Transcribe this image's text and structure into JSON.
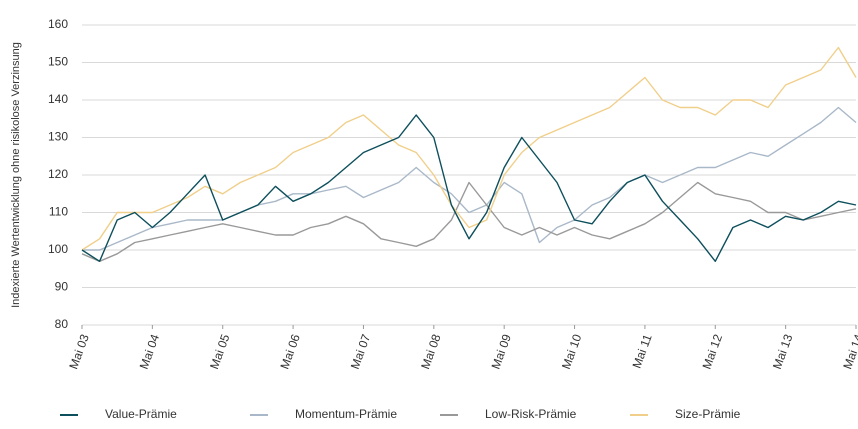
{
  "chart_data": {
    "type": "line",
    "y_label": "Indexierte Wertentwicklung ohne risikolose Verzinsung",
    "x": [
      "2003-05",
      "2003-08",
      "2003-11",
      "2004-02",
      "2004-05",
      "2004-08",
      "2004-11",
      "2005-02",
      "2005-05",
      "2005-08",
      "2005-11",
      "2006-02",
      "2006-05",
      "2006-08",
      "2006-11",
      "2007-02",
      "2007-05",
      "2007-08",
      "2007-11",
      "2008-02",
      "2008-05",
      "2008-08",
      "2008-11",
      "2009-02",
      "2009-05",
      "2009-08",
      "2009-11",
      "2010-02",
      "2010-05",
      "2010-08",
      "2010-11",
      "2011-02",
      "2011-05",
      "2011-08",
      "2011-11",
      "2012-02",
      "2012-05",
      "2012-08",
      "2012-11",
      "2013-02",
      "2013-05",
      "2013-08",
      "2013-11",
      "2014-02",
      "2014-05"
    ],
    "series": [
      {
        "name": "Value-Prämie",
        "color": "#0d4f5c",
        "values": [
          100,
          97,
          108,
          110,
          106,
          110,
          115,
          120,
          108,
          110,
          112,
          117,
          113,
          115,
          118,
          122,
          126,
          128,
          130,
          136,
          130,
          112,
          103,
          110,
          122,
          130,
          124,
          118,
          108,
          107,
          113,
          118,
          120,
          113,
          108,
          103,
          97,
          106,
          108,
          106,
          109,
          108,
          110,
          113,
          112
        ]
      },
      {
        "name": "Momentum-Prämie",
        "color": "#a9b8c8",
        "values": [
          100,
          100,
          102,
          104,
          106,
          107,
          108,
          108,
          108,
          110,
          112,
          113,
          115,
          115,
          116,
          117,
          114,
          116,
          118,
          122,
          118,
          115,
          110,
          112,
          118,
          115,
          102,
          106,
          108,
          112,
          114,
          118,
          120,
          118,
          120,
          122,
          122,
          124,
          126,
          125,
          128,
          131,
          134,
          138,
          134
        ]
      },
      {
        "name": "Low-Risk-Prämie",
        "color": "#999999",
        "values": [
          99,
          97,
          99,
          102,
          103,
          104,
          105,
          106,
          107,
          106,
          105,
          104,
          104,
          106,
          107,
          109,
          107,
          103,
          102,
          101,
          103,
          108,
          118,
          112,
          106,
          104,
          106,
          104,
          106,
          104,
          103,
          105,
          107,
          110,
          114,
          118,
          115,
          114,
          113,
          110,
          110,
          108,
          109,
          110,
          111
        ]
      },
      {
        "name": "Size-Prämie",
        "color": "#f0cf8a",
        "values": [
          100,
          103,
          110,
          110,
          110,
          112,
          114,
          117,
          115,
          118,
          120,
          122,
          126,
          128,
          130,
          134,
          136,
          132,
          128,
          126,
          120,
          112,
          106,
          108,
          120,
          126,
          130,
          132,
          134,
          136,
          138,
          142,
          146,
          140,
          138,
          138,
          136,
          140,
          140,
          138,
          144,
          146,
          148,
          154,
          146
        ]
      }
    ],
    "xlim": [
      "2003-05",
      "2014-05"
    ],
    "xticks": [
      {
        "value": "2003-05",
        "label": "Mai 03"
      },
      {
        "value": "2004-05",
        "label": "Mai 04"
      },
      {
        "value": "2005-05",
        "label": "Mai 05"
      },
      {
        "value": "2006-05",
        "label": "Mai 06"
      },
      {
        "value": "2007-05",
        "label": "Mai 07"
      },
      {
        "value": "2008-05",
        "label": "Mai 08"
      },
      {
        "value": "2009-05",
        "label": "Mai 09"
      },
      {
        "value": "2010-05",
        "label": "Mai 10"
      },
      {
        "value": "2011-05",
        "label": "Mai 11"
      },
      {
        "value": "2012-05",
        "label": "Mai 12"
      },
      {
        "value": "2013-05",
        "label": "Mai 13"
      },
      {
        "value": "2014-05",
        "label": "Mai 14"
      }
    ],
    "ylim": [
      80,
      160
    ],
    "yticks": [
      80,
      90,
      100,
      110,
      120,
      130,
      140,
      150,
      160
    ],
    "grid": true
  }
}
